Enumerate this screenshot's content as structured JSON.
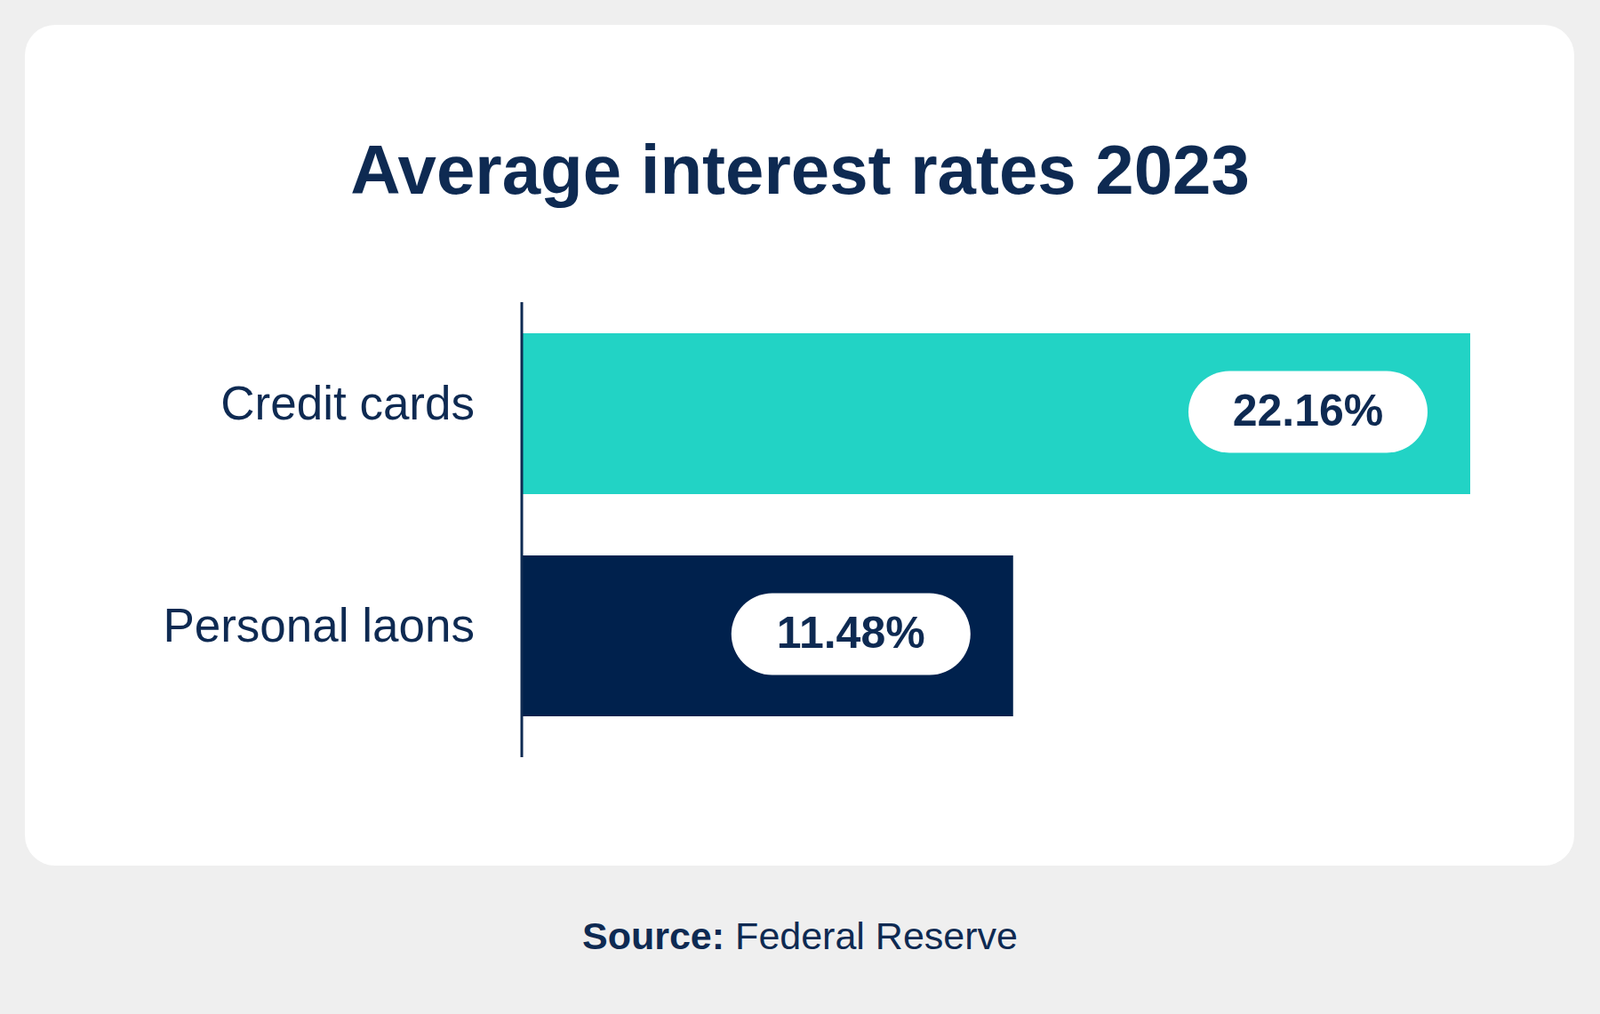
{
  "chart_data": {
    "type": "bar",
    "orientation": "horizontal",
    "title": "Average interest rates 2023",
    "categories": [
      "Credit cards",
      "Personal laons"
    ],
    "values": [
      22.16,
      11.48
    ],
    "value_labels": [
      "22.16%",
      "11.48%"
    ],
    "colors": [
      "#22d3c5",
      "#00214d"
    ],
    "xlim": [
      0,
      22.16
    ],
    "data_labels": true,
    "tick_labels": "y",
    "grid": false,
    "source_label": "Source:",
    "source": "Federal Reserve"
  }
}
